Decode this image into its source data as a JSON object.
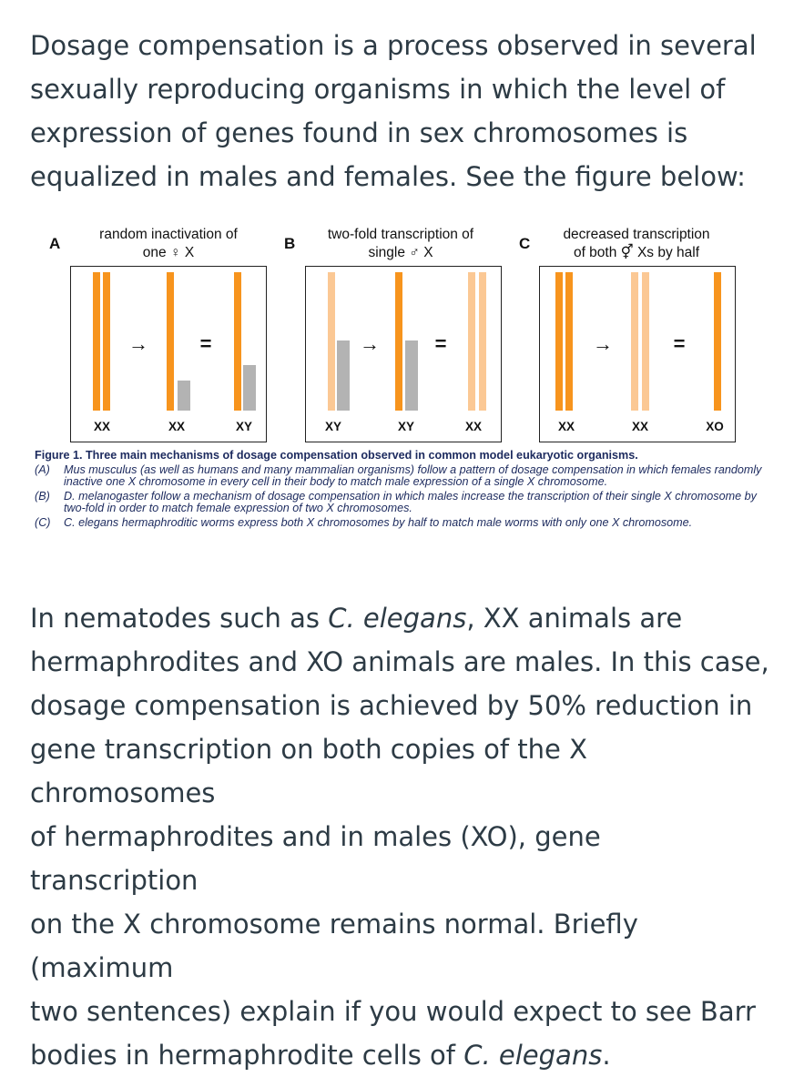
{
  "intro": {
    "line1": "Dosage compensation is a process observed in several",
    "line2": "sexually reproducing organisms in which the level of",
    "line3": "expression of genes found in sex chromosomes is",
    "line4": "equalized in males and females. See the figure below:"
  },
  "figure": {
    "panels": [
      {
        "letter": "A",
        "title_line1": "random inactivation of",
        "title_line2": "one ♀ X",
        "labels": [
          "XX",
          "XX",
          "XY"
        ]
      },
      {
        "letter": "B",
        "title_line1": "two-fold transcription of",
        "title_line2": "single ♂ X",
        "labels": [
          "XY",
          "XY",
          "XX"
        ]
      },
      {
        "letter": "C",
        "title_line1": "decreased transcription",
        "title_line2": "of both ⚥ Xs by half",
        "labels": [
          "XX",
          "XX",
          "XO"
        ]
      }
    ],
    "colors": {
      "active_x": "#f7941d",
      "half_x": "#fbc894",
      "y": "#b3b3b3"
    },
    "caption": {
      "title": "Figure 1. Three main mechanisms of dosage compensation observed in common model eukaryotic organisms.",
      "items": [
        {
          "tag": "(A)",
          "text": "Mus musculus (as well as humans and many mammalian organisms) follow a pattern of dosage compensation in which females randomly inactive one X chromosome in every cell in their body to match male expression of a single X chromosome."
        },
        {
          "tag": "(B)",
          "text": "D. melanogaster follow a mechanism of dosage compensation in which males increase the transcription of their single X chromosome by two-fold in order to match female expression of two X chromosomes."
        },
        {
          "tag": "(C)",
          "text": "C. elegans hermaphroditic worms express both X chromosomes by half to match male worms with only one X chromosome."
        }
      ]
    }
  },
  "question": {
    "line1_pre": "In nematodes such as ",
    "line1_em": "C. elegans",
    "line1_post": ", XX animals are",
    "line2": "hermaphrodites and XO animals are males. In this case,",
    "line3": "dosage compensation is achieved by 50% reduction in",
    "line4": "gene transcription on both copies of the X chromosomes",
    "line5": "of hermaphrodites and in males (XO), gene transcription",
    "line6": "on the X chromosome remains normal. Briefly (maximum",
    "line7": "two sentences) explain if you would expect to see Barr",
    "line8_pre": "bodies in hermaphrodite cells of ",
    "line8_em": "C. elegans",
    "line8_post": "."
  }
}
